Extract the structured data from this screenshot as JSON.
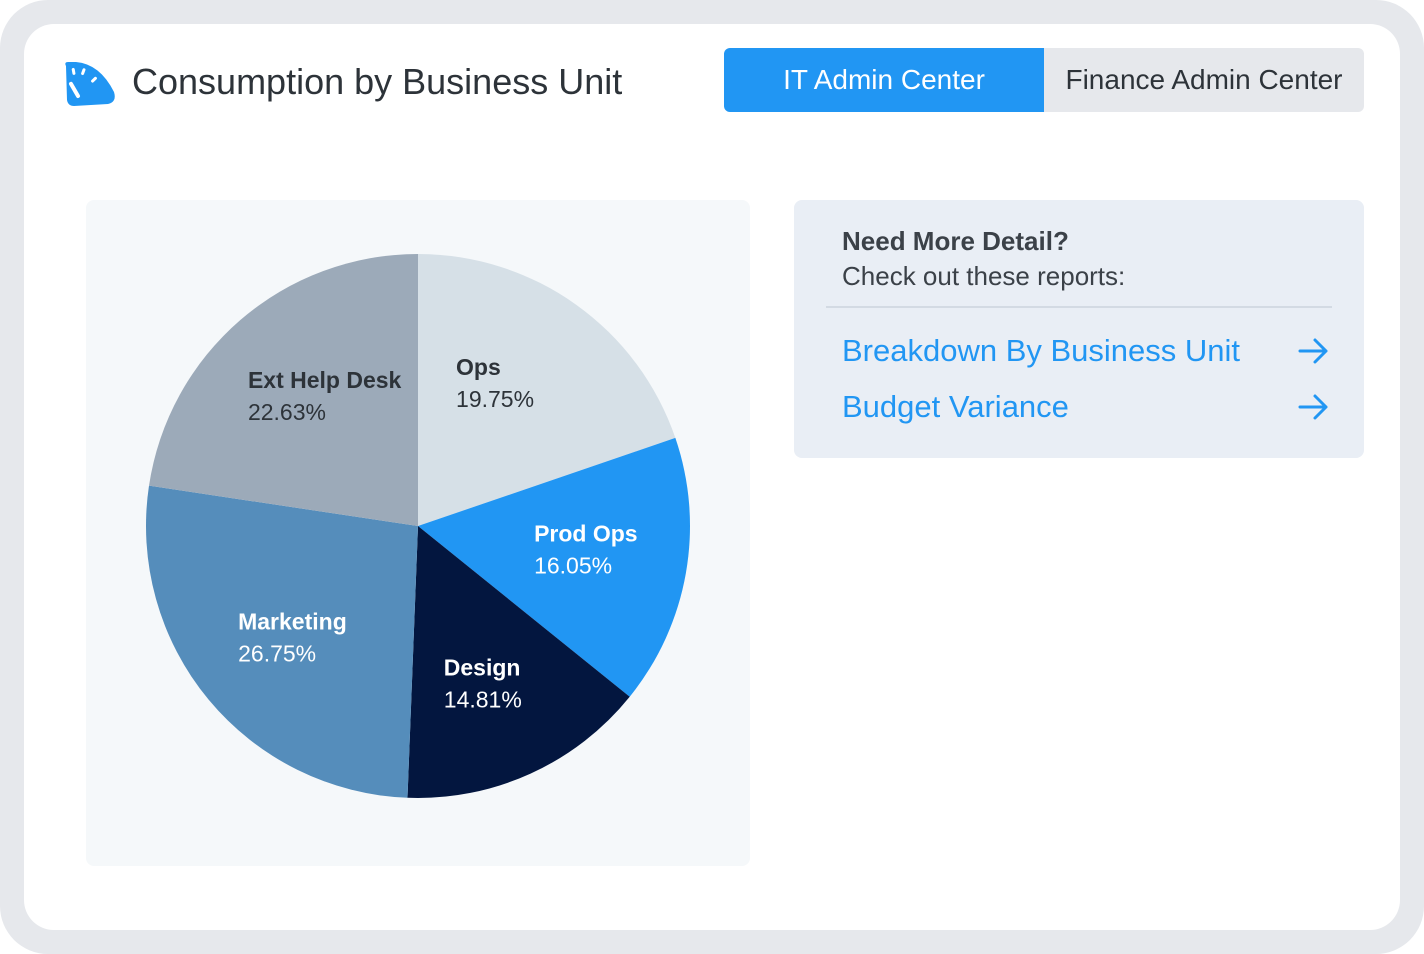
{
  "header": {
    "title": "Consumption by Business Unit",
    "icon": "speedometer-icon"
  },
  "tabs": [
    {
      "label": "IT Admin Center",
      "active": true
    },
    {
      "label": "Finance Admin Center",
      "active": false
    }
  ],
  "detail": {
    "heading": "Need More Detail?",
    "subheading": "Check out these reports:",
    "links": [
      {
        "label": "Breakdown By Business Unit",
        "icon": "arrow-right-icon"
      },
      {
        "label": "Budget Variance",
        "icon": "arrow-right-icon"
      }
    ]
  },
  "colors": {
    "accent": "#2196f3",
    "ops": "#d6e0e7",
    "prod_ops": "#2196f3",
    "design": "#03163f",
    "marketing": "#558dbb",
    "ext_help_desk": "#9caab9"
  },
  "chart_data": {
    "type": "pie",
    "title": "Consumption by Business Unit",
    "slices": [
      {
        "name": "Ops",
        "value": 19.75,
        "label": "19.75%",
        "color": "#d6e0e7",
        "text_color": "#2d3339"
      },
      {
        "name": "Prod Ops",
        "value": 16.05,
        "label": "16.05%",
        "color": "#2196f3",
        "text_color": "#ffffff"
      },
      {
        "name": "Design",
        "value": 14.81,
        "label": "14.81%",
        "color": "#03163f",
        "text_color": "#ffffff"
      },
      {
        "name": "Marketing",
        "value": 26.75,
        "label": "26.75%",
        "color": "#558dbb",
        "text_color": "#ffffff"
      },
      {
        "name": "Ext Help Desk",
        "value": 22.63,
        "label": "22.63%",
        "color": "#9caab9",
        "text_color": "#2d3339"
      }
    ]
  }
}
